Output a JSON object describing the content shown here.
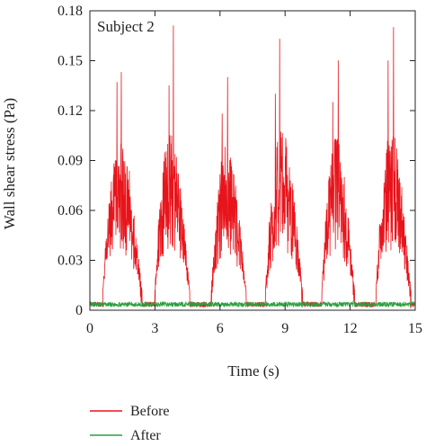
{
  "chart_data": {
    "type": "line",
    "annotation": "Subject 2",
    "xlabel": "Time (s)",
    "ylabel": "Wall shear stress (Pa)",
    "xlim": [
      0,
      15
    ],
    "ylim": [
      0,
      0.18
    ],
    "x_ticks": [
      "0",
      "3",
      "6",
      "9",
      "12",
      "15"
    ],
    "x_tick_values": [
      0,
      3,
      6,
      9,
      12,
      15
    ],
    "y_ticks": [
      "0",
      "0.03",
      "0.06",
      "0.09",
      "0.12",
      "0.15",
      "0.18"
    ],
    "y_tick_values": [
      0,
      0.03,
      0.06,
      0.09,
      0.12,
      0.15,
      0.18
    ],
    "grid": false,
    "legend_position": "below",
    "series": [
      {
        "name": "Before",
        "color": "#e8141b",
        "description_note": "oscillating signal with six burst cycles",
        "bursts": [
          {
            "start": 0.6,
            "end": 2.4,
            "mean_peak": 0.055,
            "max": 0.143,
            "max_at": 1.45,
            "second": 0.137,
            "second_at": 1.25
          },
          {
            "start": 3.0,
            "end": 4.6,
            "mean_peak": 0.06,
            "max": 0.171,
            "max_at": 3.85,
            "second": 0.135,
            "second_at": 3.65
          },
          {
            "start": 5.6,
            "end": 7.2,
            "mean_peak": 0.055,
            "max": 0.14,
            "max_at": 6.35,
            "second": 0.118,
            "second_at": 6.1
          },
          {
            "start": 8.1,
            "end": 9.8,
            "mean_peak": 0.06,
            "max": 0.163,
            "max_at": 8.75,
            "second": 0.13,
            "second_at": 8.55
          },
          {
            "start": 10.7,
            "end": 12.2,
            "mean_peak": 0.058,
            "max": 0.15,
            "max_at": 11.45,
            "second": 0.125,
            "second_at": 11.2
          },
          {
            "start": 13.2,
            "end": 14.8,
            "mean_peak": 0.06,
            "max": 0.17,
            "max_at": 14.0,
            "second": 0.15,
            "second_at": 13.75
          }
        ],
        "baseline": 0.002
      },
      {
        "name": "After",
        "color": "#2e9e3e",
        "baseline": 0.002,
        "noise": 0.003
      }
    ]
  }
}
